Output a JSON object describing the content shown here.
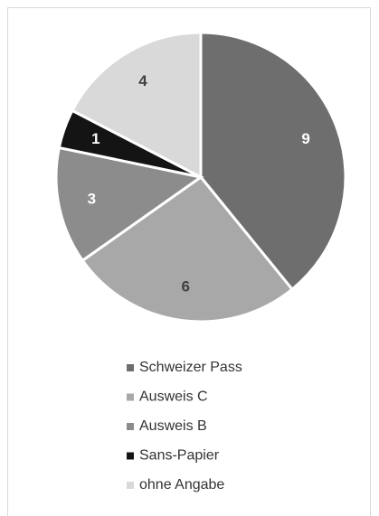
{
  "chart_data": {
    "type": "pie",
    "categories": [
      "Schweizer Pass",
      "Ausweis C",
      "Ausweis B",
      "Sans-Papier",
      "ohne Angabe"
    ],
    "values": [
      9,
      6,
      3,
      1,
      4
    ],
    "colors": [
      "#6e6e6e",
      "#a8a8a8",
      "#8c8c8c",
      "#141414",
      "#d9d9d9"
    ],
    "legend": "bottom"
  }
}
